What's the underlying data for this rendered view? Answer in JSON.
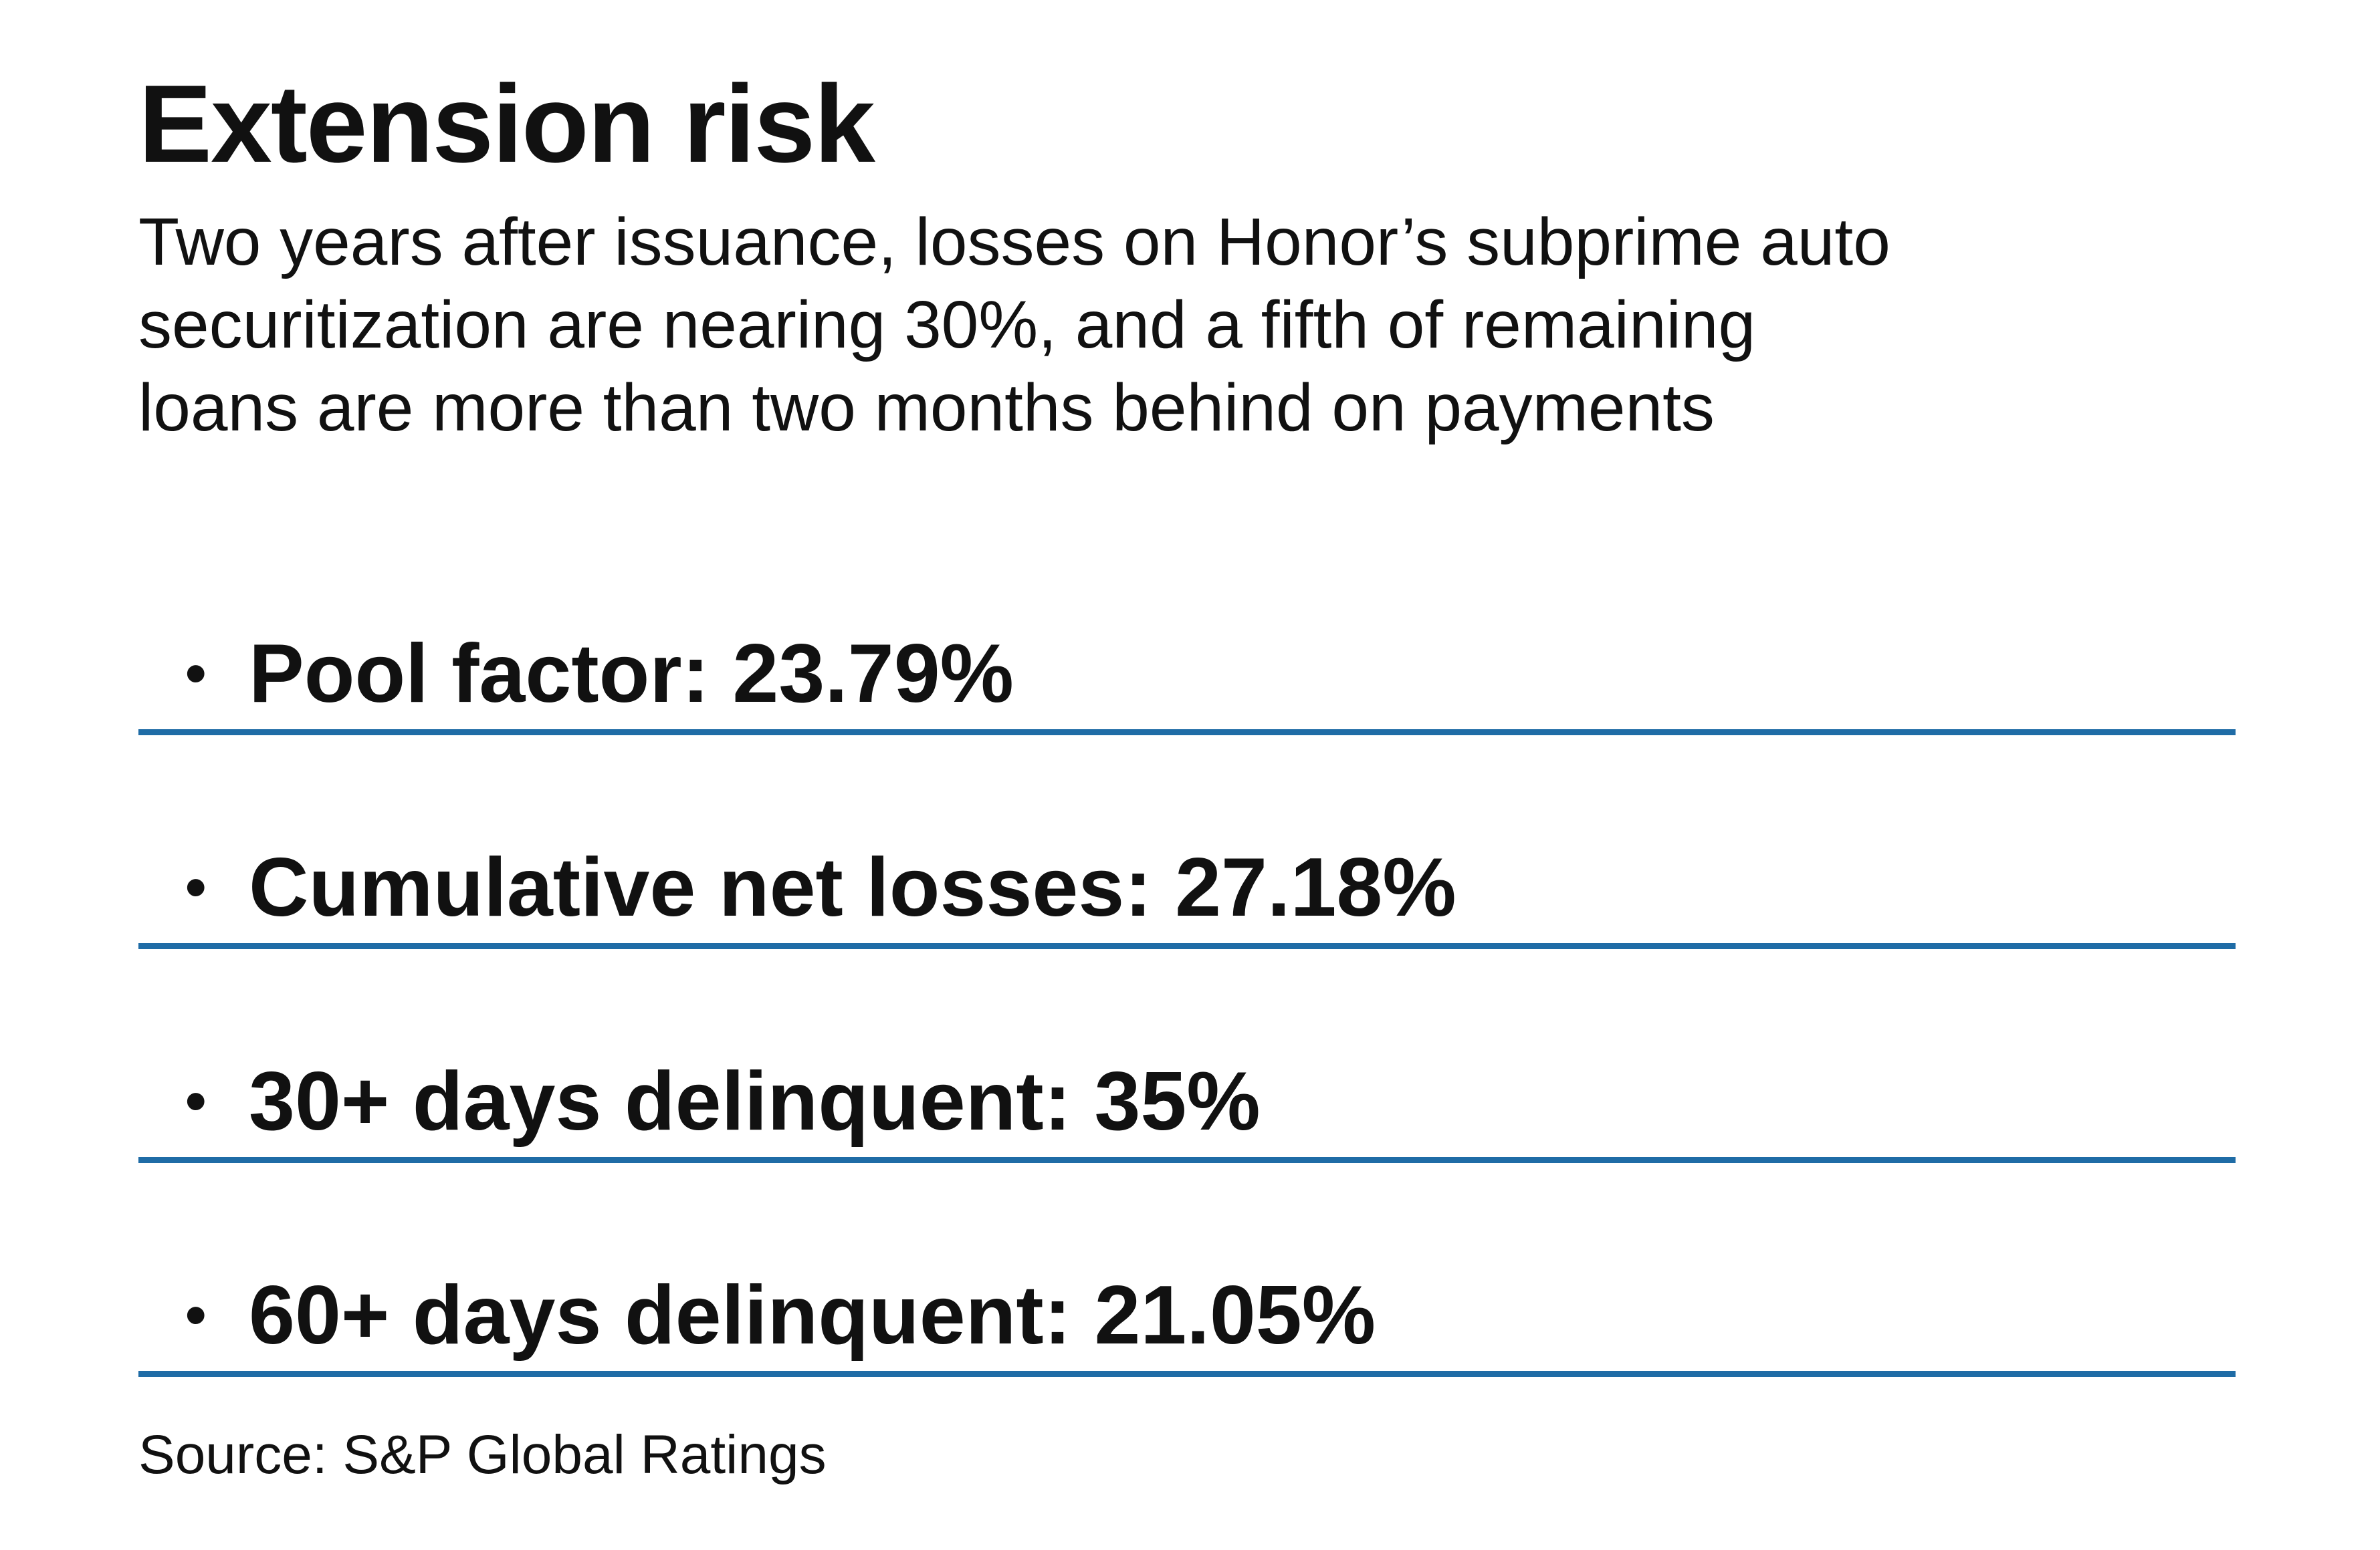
{
  "title": "Extension risk",
  "subtitle": {
    "lines": [
      "Two years after issuance, losses on Honor’s subprime auto",
      "securitization are nearing 30%, and a fifth of remaining",
      "loans are more than two months behind on payments"
    ]
  },
  "stats": [
    {
      "bullet": "•",
      "text": "Pool factor: 23.79%"
    },
    {
      "bullet": "•",
      "text": "Cumulative net losses: 27.18%"
    },
    {
      "bullet": "•",
      "text": "30+ days delinquent: 35%"
    },
    {
      "bullet": "•",
      "text": "60+ days delinquent: 21.05%"
    }
  ],
  "source": "Source: S&P Global Ratings",
  "colors": {
    "rule": "#1f6ca6",
    "text": "#111111",
    "background": "#ffffff"
  }
}
